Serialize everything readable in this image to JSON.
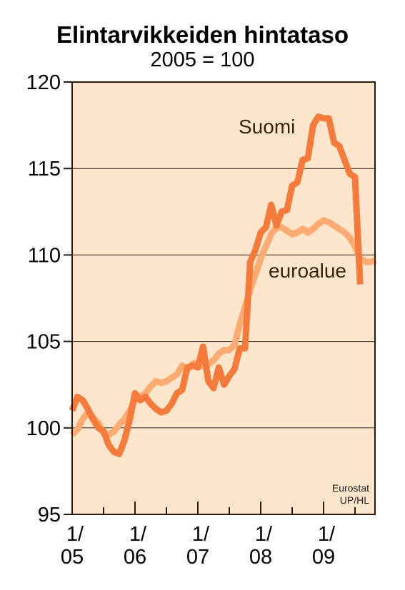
{
  "chart_data": {
    "type": "line",
    "title": "Elintarvikkeiden hintataso",
    "subtitle": "2005 = 100",
    "xlabel": "",
    "ylabel": "",
    "ylim": [
      95,
      120
    ],
    "yticks": [
      "95",
      "100",
      "105",
      "110",
      "115",
      "120"
    ],
    "xticks": [
      {
        "month": 0,
        "line1": "1/",
        "line2": "05"
      },
      {
        "month": 12,
        "line1": "1/",
        "line2": "06"
      },
      {
        "month": 24,
        "line1": "1/",
        "line2": "07"
      },
      {
        "month": 36,
        "line1": "1/",
        "line2": "08"
      },
      {
        "month": 48,
        "line1": "1/",
        "line2": "09"
      }
    ],
    "x_range_months": [
      0,
      59
    ],
    "grid": true,
    "series": [
      {
        "name": "euroalue",
        "color": "#fdab73",
        "values": [
          99.6,
          99.9,
          100.5,
          100.9,
          100.6,
          100.3,
          99.7,
          99.6,
          99.8,
          100.2,
          100.5,
          101.0,
          101.6,
          101.8,
          102.0,
          102.4,
          102.7,
          102.6,
          102.7,
          102.9,
          103.1,
          103.6,
          103.4,
          103.7,
          103.8,
          103.6,
          103.7,
          103.9,
          104.3,
          104.5,
          104.5,
          104.8,
          106.0,
          107.0,
          108.0,
          108.9,
          109.8,
          110.5,
          111.2,
          111.6,
          111.6,
          111.4,
          111.2,
          111.3,
          111.5,
          111.3,
          111.5,
          111.8,
          112.0,
          111.9,
          111.7,
          111.5,
          111.3,
          111.0,
          110.5,
          109.8,
          109.6,
          109.6,
          109.7
        ]
      },
      {
        "name": "Suomi",
        "color": "#f47b3c",
        "values": [
          101.0,
          101.8,
          101.6,
          101.1,
          100.5,
          100.0,
          99.8,
          99.0,
          98.6,
          98.5,
          99.3,
          100.5,
          102.0,
          101.6,
          101.8,
          101.4,
          101.1,
          100.9,
          101.0,
          101.4,
          102.0,
          102.2,
          103.5,
          103.6,
          103.5,
          104.7,
          102.7,
          102.3,
          103.5,
          102.5,
          103.0,
          103.4,
          104.6,
          104.6,
          109.6,
          110.3,
          111.3,
          111.6,
          112.9,
          111.7,
          112.5,
          112.6,
          114.0,
          114.2,
          115.5,
          115.6,
          117.5,
          118.0,
          117.9,
          117.9,
          116.5,
          116.3,
          115.5,
          114.7,
          114.5,
          108.3
        ]
      }
    ],
    "annotations": [
      "Suomi",
      "euroalue"
    ],
    "source": [
      "Eurostat",
      "UP/HL"
    ]
  }
}
